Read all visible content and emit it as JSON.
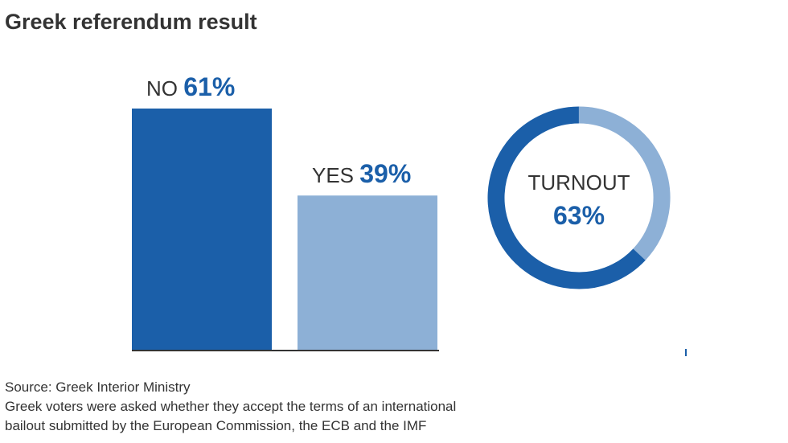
{
  "title": "Greek referendum result",
  "chart_data": [
    {
      "type": "bar",
      "categories": [
        "NO",
        "YES"
      ],
      "values": [
        61,
        39
      ],
      "value_labels": [
        "61%",
        "39%"
      ],
      "unit": "%",
      "ylim": [
        0,
        61
      ],
      "grid": false,
      "colors": [
        "#1b5fa9",
        "#8db0d6"
      ]
    },
    {
      "type": "pie",
      "label": "TURNOUT",
      "value_label": "63%",
      "values": [
        63,
        37
      ],
      "colors": [
        "#1b5fa9",
        "#8db0d6"
      ]
    }
  ],
  "footer": {
    "source": "Source: Greek Interior Ministry",
    "note_line1": "Greek voters were asked whether they accept the terms of an international",
    "note_line2": "bailout submitted by the European Commission, the ECB and the IMF"
  },
  "colors": {
    "accent": "#1b5fa9",
    "accent_light": "#8db0d6",
    "text": "#333333"
  }
}
